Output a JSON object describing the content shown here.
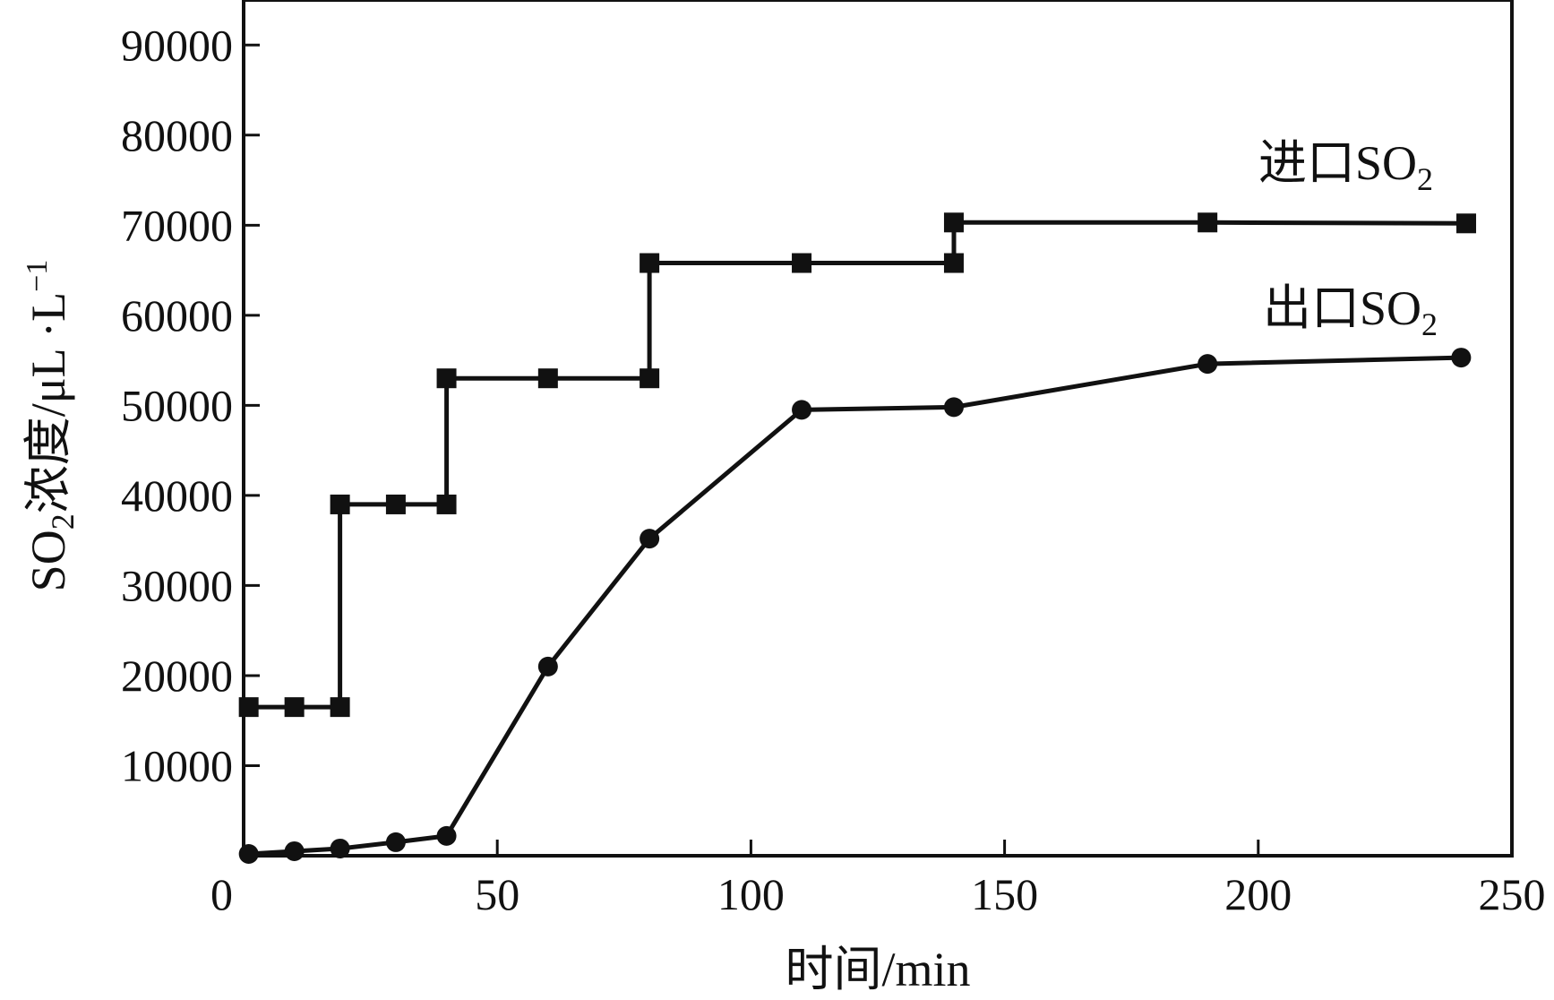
{
  "chart_data": {
    "type": "line",
    "xlabel": "时间/min",
    "ylabel": {
      "prefix": "SO",
      "subscript": "2",
      "middle": "浓度/μL ·L",
      "superscript": "−1"
    },
    "xlim": [
      0,
      250
    ],
    "ylim": [
      0,
      95000
    ],
    "xticks": [
      0,
      50,
      100,
      150,
      200,
      250
    ],
    "yticks": [
      10000,
      20000,
      30000,
      40000,
      50000,
      60000,
      70000,
      80000,
      90000
    ],
    "grid": false,
    "series": [
      {
        "name": "进口SO2",
        "label_main": "进口SO",
        "label_sub": "2",
        "marker": "square",
        "step": true,
        "color": "#111111",
        "points": [
          [
            1,
            16500
          ],
          [
            10,
            16500
          ],
          [
            19,
            16500
          ],
          [
            19,
            39000
          ],
          [
            30,
            39000
          ],
          [
            40,
            39000
          ],
          [
            40,
            53000
          ],
          [
            60,
            53000
          ],
          [
            80,
            53000
          ],
          [
            80,
            65800
          ],
          [
            110,
            65800
          ],
          [
            140,
            65800
          ],
          [
            140,
            70300
          ],
          [
            190,
            70300
          ],
          [
            241,
            70200
          ]
        ]
      },
      {
        "name": "出口SO2",
        "label_main": "出口SO",
        "label_sub": "2",
        "marker": "circle",
        "step": false,
        "color": "#111111",
        "points": [
          [
            1,
            200
          ],
          [
            10,
            500
          ],
          [
            19,
            800
          ],
          [
            30,
            1500
          ],
          [
            40,
            2200
          ],
          [
            60,
            21000
          ],
          [
            80,
            35200
          ],
          [
            110,
            49500
          ],
          [
            140,
            49800
          ],
          [
            190,
            54600
          ],
          [
            240,
            55300
          ]
        ]
      }
    ]
  }
}
